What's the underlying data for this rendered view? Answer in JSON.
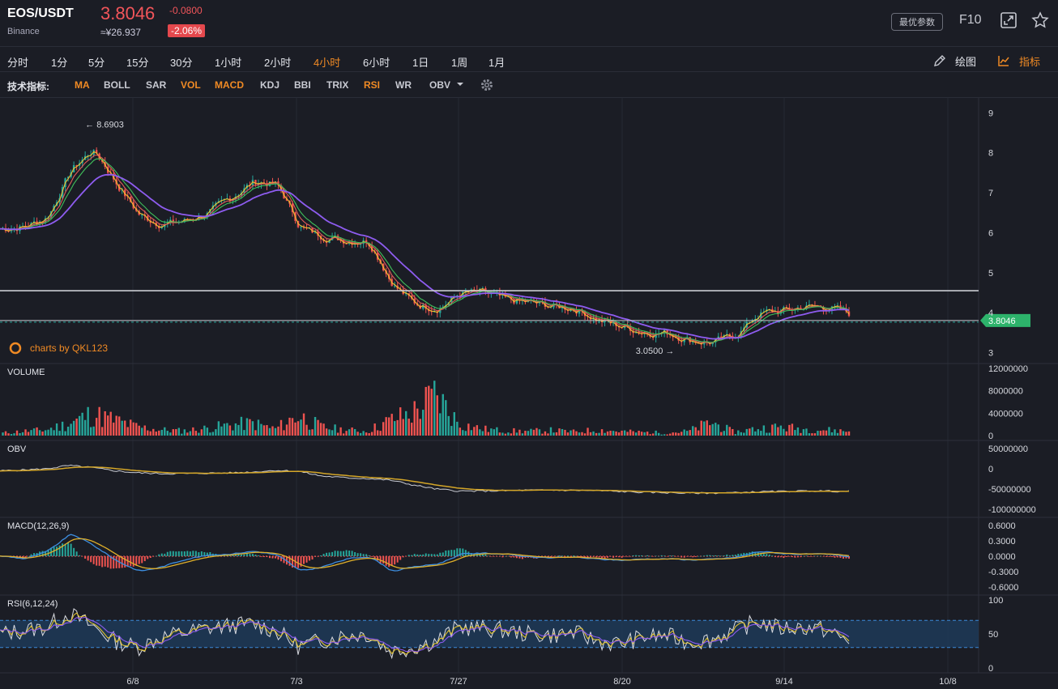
{
  "header": {
    "symbol": "EOS/USDT",
    "exchange": "Binance",
    "price": "3.8046",
    "change": "-0.0800",
    "price_cny": "≈¥26.937",
    "change_pct": "-2.06%",
    "best_params_label": "最优参数",
    "f10_label": "F10",
    "icons": [
      "expand-icon",
      "star-icon"
    ]
  },
  "timeframes": {
    "items": [
      "分时",
      "1分",
      "5分",
      "15分",
      "30分",
      "1小时",
      "2小时",
      "4小时",
      "6小时",
      "1日",
      "1周",
      "1月"
    ],
    "active": "4小时",
    "draw_label": "绘图",
    "indicator_label": "指标"
  },
  "indicators": {
    "label": "技术指标:",
    "items": [
      "MA",
      "BOLL",
      "SAR",
      "VOL",
      "MACD",
      "KDJ",
      "BBI",
      "TRIX",
      "RSI",
      "WR",
      "OBV"
    ],
    "active": [
      "MA",
      "VOL",
      "MACD",
      "RSI"
    ]
  },
  "colors": {
    "up": "#26a69a",
    "down": "#ef5350",
    "accent": "#f08a24",
    "price_tag": "#2db36b",
    "ma_long": "#8e5cf0",
    "ma_short": "#f2c12e"
  },
  "chart_data": [
    {
      "type": "line",
      "title": "",
      "series": [
        {
          "values": [
            6.1,
            6.15,
            6.4,
            7.6,
            8.1,
            7.2,
            6.4,
            6.2,
            6.3,
            6.5,
            6.9,
            7.3,
            7.2,
            6.1,
            5.9,
            5.8,
            5.8,
            4.7,
            4.2,
            4.1,
            4.5,
            4.5,
            4.3,
            4.25,
            4.15,
            4.1,
            3.8,
            3.65,
            3.5,
            3.5,
            3.3,
            3.25,
            3.45,
            4.0,
            4.05,
            4.15,
            4.15,
            3.95
          ]
        }
      ],
      "x_tick_labels": [
        "6/8",
        "7/3",
        "7/27",
        "8/20",
        "9/14",
        "10/8"
      ],
      "y_tick_labels": [
        "9",
        "8",
        "7",
        "6",
        "5",
        "4",
        "3"
      ],
      "ylim": [
        3,
        9
      ],
      "annotations": {
        "high": "8.6903",
        "low": "3.0500"
      },
      "last_price": "3.8046",
      "resistance_level": 4.55,
      "watermark": "charts by QKL123"
    },
    {
      "type": "bar",
      "title": "VOLUME",
      "y_tick_labels": [
        "12000000",
        "8000000",
        "4000000",
        "0"
      ],
      "ylim": [
        0,
        12000000
      ],
      "values": [
        500000,
        900000,
        1200000,
        2500000,
        4500000,
        3200000,
        1800000,
        1200000,
        1000000,
        1500000,
        2200000,
        2600000,
        1400000,
        4200000,
        1800000,
        1200000,
        900000,
        3200000,
        4800000,
        8500000,
        2500000,
        1400000,
        1000000,
        900000,
        1100000,
        800000,
        1200000,
        900000,
        700000,
        600000,
        900000,
        2800000,
        700000,
        1500000,
        1800000,
        1400000,
        1200000,
        900000
      ]
    },
    {
      "type": "line",
      "title": "OBV",
      "y_tick_labels": [
        "50000000",
        "0",
        "-50000000",
        "-100000000"
      ],
      "ylim": [
        -100000000,
        50000000
      ],
      "series": [
        {
          "values": [
            -5000000,
            -3000000,
            0,
            8000000,
            3000000,
            -5000000,
            -10000000,
            -12000000,
            -12000000,
            -11000000,
            -10000000,
            -8000000,
            -4000000,
            -6000000,
            -18000000,
            -22000000,
            -24000000,
            -28000000,
            -40000000,
            -50000000,
            -55000000,
            -55000000,
            -54000000,
            -53000000,
            -53000000,
            -53000000,
            -54000000,
            -56000000,
            -58000000,
            -59000000,
            -60000000,
            -60000000,
            -59000000,
            -57000000,
            -56000000,
            -55000000,
            -55000000,
            -56000000
          ]
        }
      ]
    },
    {
      "type": "line",
      "title": "MACD(12,26,9)",
      "y_tick_labels": [
        "0.6000",
        "0.3000",
        "0.0000",
        "-0.3000",
        "-0.6000"
      ],
      "ylim": [
        -0.6,
        0.6
      ],
      "series": [
        {
          "values": [
            0.0,
            -0.05,
            0.1,
            0.45,
            0.2,
            -0.1,
            -0.3,
            -0.2,
            -0.05,
            0.02,
            0.05,
            0.1,
            0.02,
            -0.3,
            -0.2,
            -0.05,
            0.0,
            -0.3,
            -0.2,
            -0.15,
            0.05,
            0.06,
            0.04,
            -0.02,
            -0.03,
            -0.02,
            -0.06,
            -0.08,
            -0.05,
            -0.05,
            -0.07,
            -0.06,
            -0.02,
            0.1,
            0.05,
            0.04,
            0.03,
            -0.01
          ]
        }
      ]
    },
    {
      "type": "line",
      "title": "RSI(6,12,24)",
      "y_tick_labels": [
        "100",
        "50",
        "0"
      ],
      "ylim": [
        0,
        100
      ],
      "band": [
        30,
        70
      ],
      "series": [
        {
          "values": [
            50,
            55,
            60,
            80,
            62,
            40,
            30,
            45,
            52,
            58,
            62,
            65,
            55,
            32,
            40,
            48,
            50,
            25,
            30,
            40,
            60,
            58,
            55,
            50,
            48,
            52,
            40,
            35,
            45,
            48,
            38,
            42,
            55,
            68,
            58,
            60,
            56,
            38
          ]
        }
      ]
    }
  ]
}
